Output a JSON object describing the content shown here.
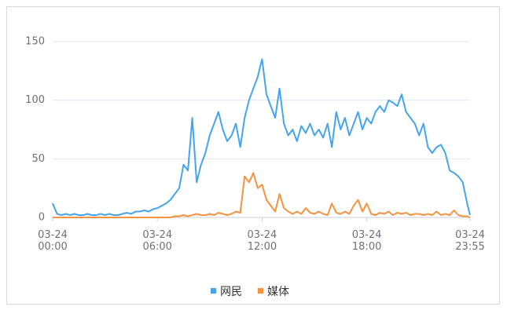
{
  "chart_data": {
    "type": "line",
    "x": [
      0,
      15,
      30,
      45,
      60,
      75,
      90,
      105,
      120,
      135,
      150,
      165,
      180,
      195,
      210,
      225,
      240,
      255,
      270,
      285,
      300,
      315,
      330,
      345,
      360,
      375,
      390,
      405,
      420,
      435,
      450,
      465,
      480,
      495,
      510,
      525,
      540,
      555,
      570,
      585,
      600,
      615,
      630,
      645,
      660,
      675,
      690,
      705,
      720,
      735,
      750,
      765,
      780,
      795,
      810,
      825,
      840,
      855,
      870,
      885,
      900,
      915,
      930,
      945,
      960,
      975,
      990,
      1005,
      1020,
      1035,
      1050,
      1065,
      1080,
      1095,
      1110,
      1125,
      1140,
      1155,
      1170,
      1185,
      1200,
      1215,
      1230,
      1245,
      1260,
      1275,
      1290,
      1305,
      1320,
      1335,
      1350,
      1365,
      1380,
      1395,
      1410,
      1425,
      1435
    ],
    "series": [
      {
        "name": "网民",
        "color": "#45a5ec",
        "values": [
          12,
          3,
          2,
          3,
          2,
          3,
          2,
          2,
          3,
          2,
          2,
          3,
          2,
          3,
          2,
          2,
          3,
          4,
          3,
          5,
          5,
          6,
          5,
          7,
          8,
          10,
          12,
          15,
          20,
          25,
          45,
          40,
          85,
          30,
          45,
          55,
          70,
          80,
          90,
          75,
          65,
          70,
          80,
          60,
          85,
          100,
          110,
          120,
          135,
          105,
          95,
          85,
          110,
          80,
          70,
          75,
          65,
          78,
          72,
          80,
          70,
          75,
          68,
          80,
          60,
          90,
          75,
          85,
          70,
          80,
          90,
          75,
          85,
          80,
          90,
          95,
          90,
          100,
          98,
          95,
          105,
          90,
          85,
          80,
          70,
          80,
          60,
          55,
          60,
          62,
          55,
          40,
          38,
          35,
          30,
          12,
          2
        ]
      },
      {
        "name": "媒体",
        "color": "#f5933f",
        "values": [
          0,
          0,
          0,
          0,
          0,
          0,
          0,
          0,
          0,
          0,
          0,
          0,
          0,
          0,
          0,
          0,
          0,
          0,
          0,
          0,
          0,
          0,
          0,
          0,
          0,
          0,
          0,
          0,
          1,
          1,
          2,
          1,
          2,
          3,
          2,
          2,
          3,
          2,
          4,
          3,
          2,
          3,
          5,
          4,
          35,
          30,
          38,
          25,
          28,
          15,
          10,
          5,
          20,
          8,
          5,
          3,
          5,
          3,
          8,
          4,
          3,
          5,
          3,
          2,
          12,
          4,
          3,
          5,
          3,
          10,
          15,
          5,
          12,
          3,
          2,
          4,
          3,
          5,
          2,
          4,
          3,
          4,
          2,
          3,
          3,
          2,
          3,
          2,
          5,
          2,
          3,
          2,
          6,
          2,
          1,
          1,
          0
        ]
      }
    ],
    "xlim": [
      0,
      1435
    ],
    "xticks": [
      {
        "value": 0,
        "label": "03-24\n00:00"
      },
      {
        "value": 360,
        "label": "03-24\n06:00"
      },
      {
        "value": 720,
        "label": "03-24\n12:00"
      },
      {
        "value": 1080,
        "label": "03-24\n18:00"
      },
      {
        "value": 1435,
        "label": "03-24\n23:55"
      }
    ],
    "ylim": [
      0,
      150
    ],
    "yticks": [
      0,
      50,
      100,
      150
    ],
    "grid": true
  }
}
